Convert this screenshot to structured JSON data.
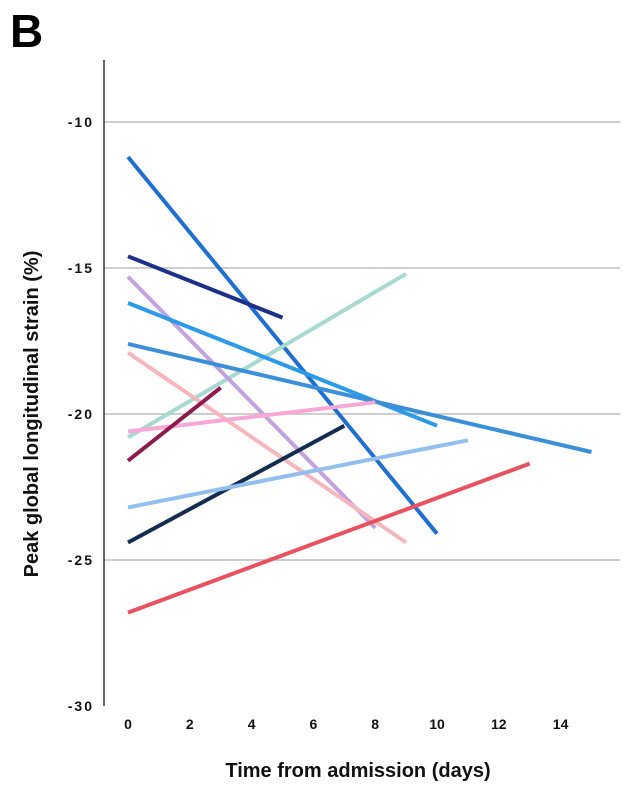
{
  "panel_label": "B",
  "chart_data": {
    "type": "line",
    "xlabel": "Time from admission (days)",
    "ylabel": "Peak global longitudinal strain (%)",
    "xlim": [
      -0.7,
      16
    ],
    "ylim": [
      -30,
      -8
    ],
    "x_ticks": [
      0,
      2,
      4,
      6,
      8,
      10,
      12,
      14
    ],
    "x_tick_labels": [
      "0",
      "2",
      "4",
      "6",
      "8",
      "10",
      "12",
      "14"
    ],
    "y_ticks": [
      -10,
      -15,
      -20,
      -25,
      -30
    ],
    "y_tick_labels": [
      "-10",
      "-15",
      "-20",
      "-25",
      "-30"
    ],
    "grid": "horizontal",
    "legend": "none",
    "series": [
      {
        "color": "#1f6fd1",
        "x": [
          0,
          10
        ],
        "y": [
          -11.2,
          -24.1
        ]
      },
      {
        "color": "#1c2f8a",
        "x": [
          0,
          5
        ],
        "y": [
          -14.6,
          -16.7
        ]
      },
      {
        "color": "#a7d9d0",
        "x": [
          0,
          9
        ],
        "y": [
          -20.8,
          -15.2
        ]
      },
      {
        "color": "#c3a2e0",
        "x": [
          0,
          8
        ],
        "y": [
          -15.3,
          -23.9
        ]
      },
      {
        "color": "#2b9ae8",
        "x": [
          0,
          10
        ],
        "y": [
          -16.2,
          -20.4
        ]
      },
      {
        "color": "#3b8fd8",
        "x": [
          0,
          15
        ],
        "y": [
          -17.6,
          -21.3
        ]
      },
      {
        "color": "#f6b6be",
        "x": [
          0,
          9
        ],
        "y": [
          -17.9,
          -24.4
        ]
      },
      {
        "color": "#f7a8d6",
        "x": [
          0,
          8
        ],
        "y": [
          -20.6,
          -19.6
        ]
      },
      {
        "color": "#8b1a4f",
        "x": [
          0,
          3
        ],
        "y": [
          -21.6,
          -19.1
        ]
      },
      {
        "color": "#142c4f",
        "x": [
          0,
          7
        ],
        "y": [
          -24.4,
          -20.4
        ]
      },
      {
        "color": "#93bff0",
        "x": [
          0,
          11
        ],
        "y": [
          -23.2,
          -20.9
        ]
      },
      {
        "color": "#e8525e",
        "x": [
          0,
          13
        ],
        "y": [
          -26.8,
          -21.7
        ]
      }
    ]
  }
}
